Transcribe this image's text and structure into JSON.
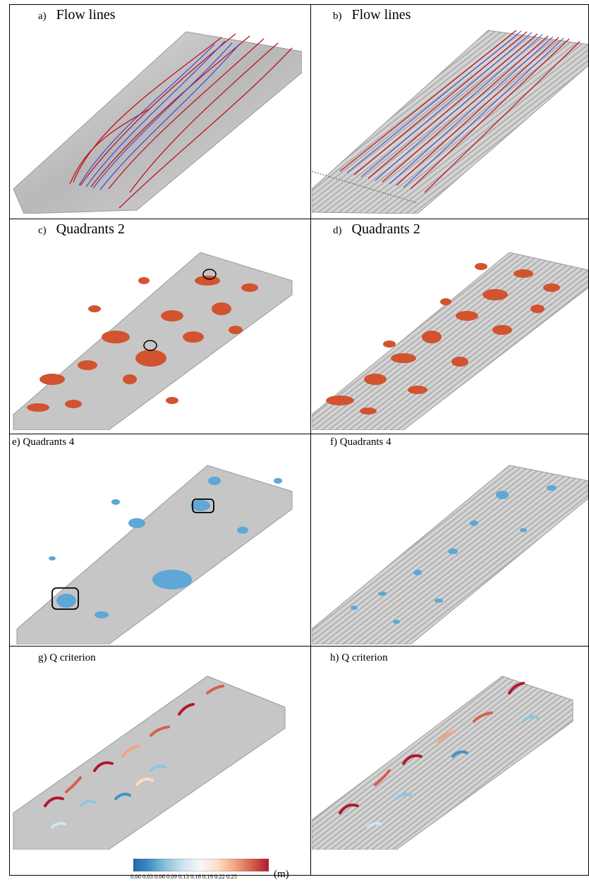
{
  "panels": [
    {
      "tag": "a)",
      "title": "Flow lines"
    },
    {
      "tag": "b)",
      "title": "Flow lines"
    },
    {
      "tag": "c)",
      "title": "Quadrants 2"
    },
    {
      "tag": "d)",
      "title": "Quadrants 2"
    },
    {
      "label": "e) Quadrants 4"
    },
    {
      "label": "f) Quadrants 4"
    },
    {
      "label": "g) Q criterion"
    },
    {
      "label": "h) Q criterion"
    }
  ],
  "colorbar": {
    "ticks": [
      "0.00",
      "0.03",
      "0.06",
      "0.09",
      "0.13",
      "0.16",
      "0.19",
      "0.22",
      "0.25"
    ],
    "unit": "(m)",
    "colors": [
      "#2166ac",
      "#4393c3",
      "#92c5de",
      "#d1e5f0",
      "#f7f7f7",
      "#fddbc7",
      "#f4a582",
      "#d6604d",
      "#b2182b"
    ]
  },
  "colors": {
    "terrain": "#c9c9c9",
    "flow_red": "#c1121f",
    "flow_blue": "#3b3bd6",
    "quadrant2": "#d2532f",
    "quadrant4": "#5ea7d6"
  }
}
